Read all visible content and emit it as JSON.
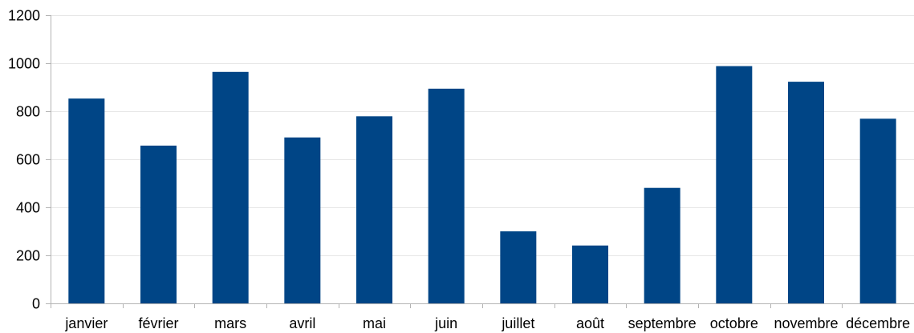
{
  "chart_data": {
    "type": "bar",
    "categories": [
      "janvier",
      "février",
      "mars",
      "avril",
      "mai",
      "juin",
      "juillet",
      "août",
      "septembre",
      "octobre",
      "novembre",
      "décembre"
    ],
    "values": [
      853,
      657,
      964,
      691,
      779,
      894,
      300,
      241,
      481,
      988,
      923,
      769
    ],
    "title": "",
    "xlabel": "",
    "ylabel": "",
    "ylim": [
      0,
      1200
    ],
    "yticks": [
      0,
      200,
      400,
      600,
      800,
      1000,
      1200
    ],
    "grid": true,
    "legend": "none",
    "bar_color": "#004586",
    "grid_color": "#e6e6e6",
    "axis_color": "#b3b3b3"
  }
}
